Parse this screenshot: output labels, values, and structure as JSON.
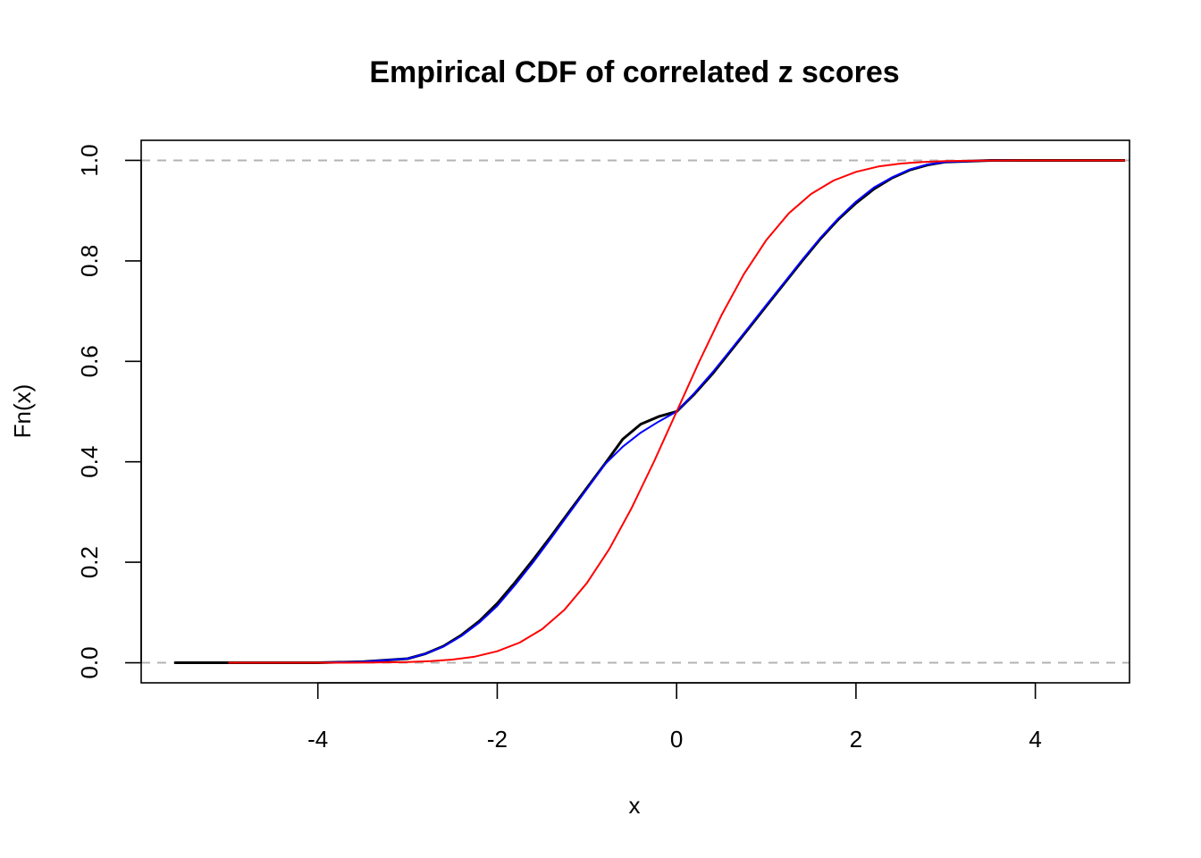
{
  "chart_data": {
    "type": "line",
    "title": "Empirical CDF of correlated z scores",
    "xlabel": "x",
    "ylabel": "Fn(x)",
    "xlim": [
      -5.97,
      5.05
    ],
    "ylim": [
      -0.04,
      1.04
    ],
    "xticks": [
      -4,
      -2,
      0,
      2,
      4
    ],
    "xtick_labels": [
      "-4",
      "-2",
      "0",
      "2",
      "4"
    ],
    "yticks": [
      0.0,
      0.2,
      0.4,
      0.6,
      0.8,
      1.0
    ],
    "ytick_labels": [
      "0.0",
      "0.2",
      "0.4",
      "0.6",
      "0.8",
      "1.0"
    ],
    "reference_lines": [
      0,
      1
    ],
    "legend": "none",
    "series": [
      {
        "color": "#000000",
        "x": [
          -5.6,
          -5.0,
          -4.0,
          -3.5,
          -3.0,
          -2.8,
          -2.6,
          -2.4,
          -2.2,
          -2.0,
          -1.8,
          -1.6,
          -1.4,
          -1.2,
          -1.0,
          -0.8,
          -0.6,
          -0.4,
          -0.2,
          0.0,
          0.2,
          0.4,
          0.6,
          0.8,
          1.0,
          1.2,
          1.4,
          1.6,
          1.8,
          2.0,
          2.2,
          2.4,
          2.6,
          2.8,
          3.0,
          3.5,
          4.0,
          5.0
        ],
        "y": [
          0.0,
          0.0,
          0.0,
          0.002,
          0.008,
          0.018,
          0.033,
          0.055,
          0.083,
          0.118,
          0.16,
          0.205,
          0.252,
          0.3,
          0.348,
          0.396,
          0.445,
          0.475,
          0.49,
          0.5,
          0.535,
          0.575,
          0.62,
          0.665,
          0.71,
          0.755,
          0.8,
          0.843,
          0.882,
          0.915,
          0.943,
          0.965,
          0.981,
          0.991,
          0.997,
          1.0,
          1.0,
          1.0
        ]
      },
      {
        "color": "#0000ff",
        "x": [
          -5.0,
          -4.0,
          -3.5,
          -3.0,
          -2.8,
          -2.6,
          -2.4,
          -2.2,
          -2.0,
          -1.8,
          -1.6,
          -1.4,
          -1.2,
          -1.0,
          -0.8,
          -0.6,
          -0.4,
          -0.2,
          0.0,
          0.2,
          0.4,
          0.6,
          0.8,
          1.0,
          1.2,
          1.4,
          1.6,
          1.8,
          2.0,
          2.2,
          2.4,
          2.6,
          2.8,
          3.0,
          3.5,
          4.0,
          5.0
        ],
        "y": [
          0.0,
          0.0,
          0.002,
          0.008,
          0.018,
          0.032,
          0.053,
          0.08,
          0.113,
          0.155,
          0.2,
          0.248,
          0.297,
          0.346,
          0.395,
          0.43,
          0.458,
          0.48,
          0.5,
          0.537,
          0.578,
          0.622,
          0.667,
          0.712,
          0.757,
          0.802,
          0.845,
          0.884,
          0.918,
          0.946,
          0.966,
          0.982,
          0.992,
          0.997,
          1.0,
          1.0,
          1.0
        ]
      },
      {
        "color": "#ff0000",
        "x": [
          -5.0,
          -4.0,
          -3.5,
          -3.0,
          -2.75,
          -2.5,
          -2.25,
          -2.0,
          -1.75,
          -1.5,
          -1.25,
          -1.0,
          -0.75,
          -0.5,
          -0.25,
          0.0,
          0.25,
          0.5,
          0.75,
          1.0,
          1.25,
          1.5,
          1.75,
          2.0,
          2.25,
          2.5,
          2.75,
          3.0,
          3.5,
          4.0,
          5.0
        ],
        "y": [
          0.0,
          0.0,
          0.0002,
          0.0013,
          0.003,
          0.0062,
          0.0122,
          0.0228,
          0.0401,
          0.0668,
          0.1056,
          0.1587,
          0.2266,
          0.3085,
          0.4013,
          0.5,
          0.5987,
          0.6915,
          0.7734,
          0.8413,
          0.8944,
          0.9332,
          0.9599,
          0.9772,
          0.9878,
          0.9938,
          0.997,
          0.9987,
          0.9998,
          1.0,
          1.0
        ]
      }
    ]
  }
}
